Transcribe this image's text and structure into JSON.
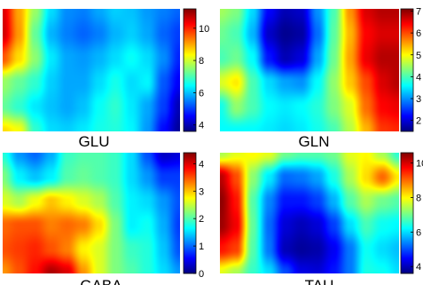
{
  "colormap": {
    "name": "jet",
    "stops": [
      "#00007f",
      "#0000ff",
      "#007fff",
      "#00ffff",
      "#7fff7f",
      "#ffff00",
      "#ff7f00",
      "#ff0000",
      "#7f0000"
    ]
  },
  "chart_data": [
    {
      "type": "heatmap",
      "title": "",
      "label": "GLU",
      "colorbar": {
        "range": [
          3.6,
          11.2
        ],
        "ticks": [
          4,
          6,
          8,
          10
        ],
        "tick_labels": [
          "4",
          "6",
          "8",
          "10"
        ]
      },
      "grid": [
        [
          10.5,
          9.0,
          7.6,
          6.2,
          5.6,
          5.5,
          5.8,
          6.1,
          6.0,
          5.7,
          5.5,
          5.3
        ],
        [
          10.6,
          9.1,
          7.2,
          5.9,
          5.5,
          5.3,
          5.5,
          5.9,
          6.1,
          5.8,
          5.3,
          5.0
        ],
        [
          9.6,
          8.6,
          7.5,
          6.3,
          5.8,
          5.7,
          5.9,
          6.2,
          6.5,
          6.2,
          5.6,
          4.8
        ],
        [
          7.6,
          7.2,
          6.8,
          6.1,
          5.8,
          5.8,
          6.2,
          6.6,
          6.2,
          6.4,
          5.2,
          4.5
        ],
        [
          7.2,
          6.8,
          6.3,
          6.0,
          5.8,
          6.0,
          6.5,
          6.8,
          6.3,
          5.8,
          5.0,
          4.0
        ],
        [
          8.6,
          8.3,
          6.8,
          6.2,
          6.1,
          6.3,
          6.6,
          6.7,
          6.4,
          5.7,
          4.6,
          3.8
        ]
      ]
    },
    {
      "type": "heatmap",
      "title": "",
      "label": "GLN",
      "colorbar": {
        "range": [
          1.5,
          7.1
        ],
        "ticks": [
          2,
          3,
          4,
          5,
          6,
          7
        ],
        "tick_labels": [
          "2",
          "3",
          "4",
          "5",
          "6",
          "7"
        ]
      },
      "grid": [
        [
          4.5,
          4.3,
          3.4,
          2.2,
          1.8,
          1.9,
          3.0,
          4.0,
          5.6,
          6.6,
          6.8,
          6.8
        ],
        [
          4.2,
          4.0,
          3.2,
          1.9,
          1.6,
          1.7,
          2.8,
          4.1,
          5.4,
          6.4,
          6.6,
          6.6
        ],
        [
          4.0,
          4.2,
          3.6,
          2.3,
          1.8,
          2.0,
          3.1,
          4.2,
          5.5,
          6.5,
          6.8,
          6.8
        ],
        [
          4.8,
          5.1,
          4.0,
          3.4,
          3.1,
          3.0,
          3.6,
          4.4,
          5.3,
          6.0,
          6.6,
          6.8
        ],
        [
          3.7,
          4.4,
          4.0,
          3.6,
          3.5,
          3.6,
          3.8,
          4.3,
          4.8,
          5.8,
          6.4,
          6.5
        ],
        [
          3.6,
          3.6,
          3.6,
          3.5,
          3.4,
          3.5,
          3.7,
          4.0,
          4.6,
          5.4,
          6.1,
          6.2
        ]
      ]
    },
    {
      "type": "heatmap",
      "title": "",
      "label": "GABA",
      "colorbar": {
        "range": [
          0,
          4.4
        ],
        "ticks": [
          0,
          1,
          2,
          3,
          4
        ],
        "tick_labels": [
          "0",
          "1",
          "2",
          "3",
          "4"
        ]
      },
      "grid": [
        [
          1.8,
          1.2,
          1.0,
          1.3,
          1.9,
          2.0,
          2.0,
          1.9,
          1.5,
          0.9,
          0.3,
          0.4
        ],
        [
          2.2,
          1.6,
          1.4,
          1.6,
          2.0,
          2.1,
          2.0,
          1.9,
          1.5,
          1.2,
          0.8,
          0.8
        ],
        [
          2.6,
          2.4,
          2.7,
          3.0,
          2.8,
          2.6,
          2.4,
          2.0,
          1.6,
          1.5,
          1.2,
          0.9
        ],
        [
          3.4,
          3.5,
          3.5,
          3.3,
          3.4,
          3.3,
          2.9,
          2.2,
          1.6,
          1.7,
          1.3,
          0.8
        ],
        [
          3.5,
          3.6,
          3.7,
          3.5,
          3.3,
          2.8,
          2.6,
          2.2,
          1.9,
          1.8,
          1.4,
          0.9
        ],
        [
          3.2,
          3.5,
          3.8,
          4.2,
          4.0,
          3.2,
          2.6,
          2.2,
          2.0,
          1.8,
          1.5,
          1.2
        ]
      ]
    },
    {
      "type": "heatmap",
      "title": "",
      "label": "TAU",
      "colorbar": {
        "range": [
          3.6,
          10.6
        ],
        "ticks": [
          4,
          6,
          8,
          10
        ],
        "tick_labels": [
          "4",
          "6",
          "8",
          "10"
        ]
      },
      "grid": [
        [
          7.4,
          7.8,
          8.0,
          7.8,
          7.0,
          6.8,
          6.8,
          7.0,
          7.8,
          8.0,
          7.4,
          6.5
        ],
        [
          10.2,
          9.2,
          7.2,
          6.1,
          5.2,
          5.3,
          5.6,
          6.4,
          7.4,
          8.2,
          9.0,
          8.1
        ],
        [
          10.5,
          9.6,
          6.8,
          5.4,
          4.6,
          4.6,
          4.9,
          5.7,
          6.8,
          7.4,
          7.0,
          6.8
        ],
        [
          10.4,
          9.8,
          6.9,
          5.2,
          4.2,
          4.0,
          4.2,
          4.9,
          6.0,
          6.7,
          6.3,
          6.2
        ],
        [
          9.6,
          9.3,
          6.8,
          5.3,
          4.0,
          3.8,
          3.9,
          4.4,
          5.3,
          6.3,
          6.0,
          5.8
        ],
        [
          7.8,
          7.4,
          6.6,
          6.0,
          5.0,
          4.3,
          4.2,
          4.6,
          5.3,
          6.4,
          6.3,
          6.0
        ]
      ]
    }
  ]
}
